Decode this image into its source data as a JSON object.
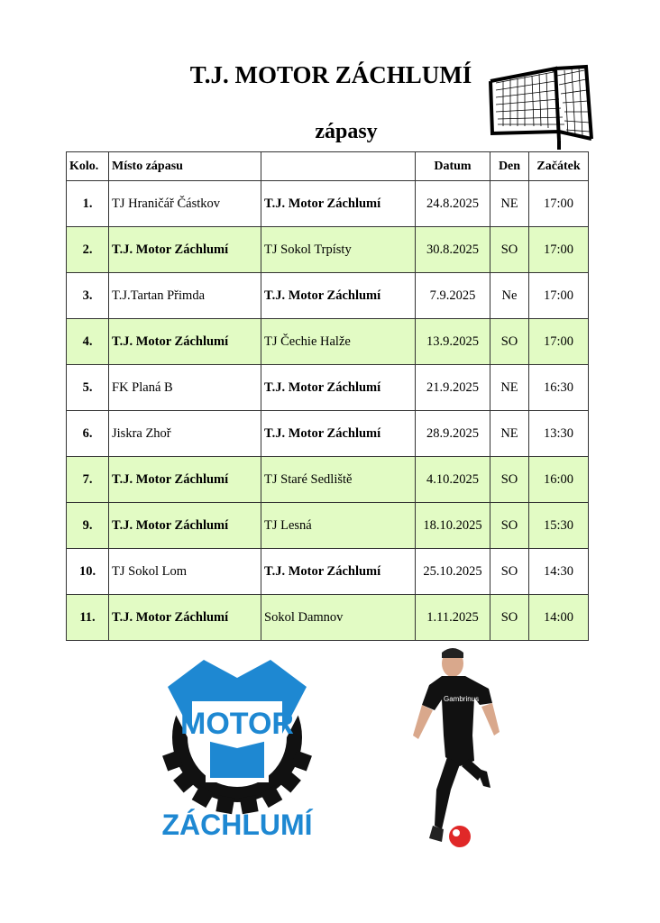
{
  "header": {
    "title": "T.J. MOTOR ZÁCHLUMÍ",
    "subtitle": "zápasy"
  },
  "colors": {
    "home_row": "#e2fbc4",
    "logo_blue": "#1e88d2",
    "logo_black": "#111111"
  },
  "table": {
    "columns": [
      "Kolo.",
      "Místo zápasu",
      "",
      "Datum",
      "Den",
      "Začátek"
    ],
    "rows": [
      {
        "kolo": "1.",
        "home": "TJ Hraničář Částkov",
        "away": "T.J. Motor Záchlumí",
        "datum": "24.8.2025",
        "den": "NE",
        "zacatek": "17:00",
        "home_game": false
      },
      {
        "kolo": "2.",
        "home": "T.J. Motor Záchlumí",
        "away": "TJ Sokol Trpísty",
        "datum": "30.8.2025",
        "den": "SO",
        "zacatek": "17:00",
        "home_game": true
      },
      {
        "kolo": "3.",
        "home": "T.J.Tartan Přimda",
        "away": "T.J. Motor Záchlumí",
        "datum": "7.9.2025",
        "den": "Ne",
        "zacatek": "17:00",
        "home_game": false
      },
      {
        "kolo": "4.",
        "home": "T.J. Motor Záchlumí",
        "away": "TJ Čechie Halže",
        "datum": "13.9.2025",
        "den": "SO",
        "zacatek": "17:00",
        "home_game": true
      },
      {
        "kolo": "5.",
        "home": "FK Planá B",
        "away": "T.J. Motor Záchlumí",
        "datum": "21.9.2025",
        "den": "NE",
        "zacatek": "16:30",
        "home_game": false
      },
      {
        "kolo": "6.",
        "home": "Jiskra Zhoř",
        "away": "T.J. Motor Záchlumí",
        "datum": "28.9.2025",
        "den": "NE",
        "zacatek": "13:30",
        "home_game": false
      },
      {
        "kolo": "7.",
        "home": "T.J. Motor Záchlumí",
        "away": "TJ Staré Sedliště",
        "datum": "4.10.2025",
        "den": "SO",
        "zacatek": "16:00",
        "home_game": true
      },
      {
        "kolo": "9.",
        "home": "T.J. Motor Záchlumí",
        "away": "TJ Lesná",
        "datum": "18.10.2025",
        "den": "SO",
        "zacatek": "15:30",
        "home_game": true
      },
      {
        "kolo": "10.",
        "home": "TJ Sokol Lom",
        "away": "T.J. Motor Záchlumí",
        "datum": "25.10.2025",
        "den": "SO",
        "zacatek": "14:30",
        "home_game": false
      },
      {
        "kolo": "11.",
        "home": "T.J. Motor Záchlumí",
        "away": "Sokol Damnov",
        "datum": "1.11.2025",
        "den": "SO",
        "zacatek": "14:00",
        "home_game": true
      }
    ]
  },
  "logo": {
    "top_text": "MOTOR",
    "bottom_text": "ZÁCHLUMÍ"
  },
  "images": {
    "goal": "soccer-goal-illustration",
    "player": "football-player-photo"
  }
}
